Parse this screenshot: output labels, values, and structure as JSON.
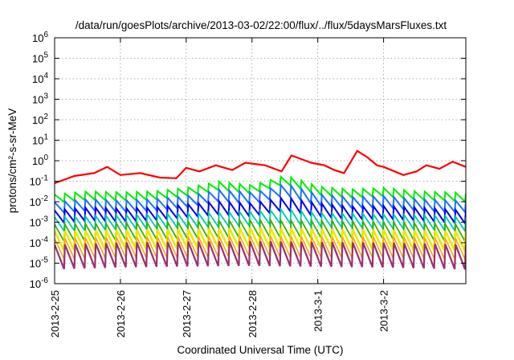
{
  "chart_data": {
    "type": "line",
    "title": "/data/run/goesPlots/archive/2013-03-02/22:00/flux/../flux/5daysMarsFluxes.txt",
    "xlabel": "Coordinated Universal Time (UTC)",
    "ylabel": "protons/cm²-s-sr-MeV",
    "yscale": "log",
    "ylim": [
      1e-06,
      1000000.0
    ],
    "ytick_values": [
      -6,
      -5,
      -4,
      -3,
      -2,
      -1,
      0,
      1,
      2,
      3,
      4,
      5,
      6
    ],
    "xlim_days": [
      0,
      6.25
    ],
    "xtick_labels": [
      "2013-2-25",
      "2013-2-26",
      "2013-2-27",
      "2013-2-28",
      "2013-3-1",
      "2013-3-2"
    ],
    "grid": true,
    "legend": "none",
    "sawtooth_teeth": 40,
    "series": [
      {
        "color": "#ff0000",
        "lw": 2.2,
        "x": [
          0,
          0.3,
          0.6,
          0.8,
          1.0,
          1.3,
          1.6,
          1.85,
          2.0,
          2.2,
          2.45,
          2.7,
          2.9,
          3.2,
          3.45,
          3.6,
          3.9,
          4.1,
          4.25,
          4.4,
          4.6,
          4.75,
          4.9,
          5.0,
          5.3,
          5.5,
          5.65,
          5.85,
          6.05,
          6.25
        ],
        "y": [
          0.08,
          0.18,
          0.25,
          0.5,
          0.2,
          0.25,
          0.15,
          0.14,
          0.45,
          0.3,
          0.6,
          0.35,
          0.8,
          0.6,
          0.3,
          1.8,
          0.8,
          0.6,
          0.35,
          0.25,
          3.0,
          1.5,
          0.6,
          0.5,
          0.2,
          0.3,
          0.6,
          0.4,
          0.9,
          0.5
        ]
      },
      {
        "color": "#00ee00",
        "lw": 2.0,
        "x": [
          0,
          0.5,
          1.0,
          1.5,
          2.0,
          2.5,
          3.0,
          3.2,
          3.5,
          3.8,
          4.0,
          4.5,
          5.0,
          5.5,
          6.0,
          6.25
        ],
        "y": [
          0.014,
          0.02,
          0.018,
          0.02,
          0.03,
          0.06,
          0.04,
          0.06,
          0.12,
          0.06,
          0.035,
          0.025,
          0.03,
          0.02,
          0.018,
          0.016
        ],
        "amp": 1.6
      },
      {
        "color": "#1e70ff",
        "lw": 2.0,
        "x": [
          0,
          0.5,
          1.0,
          1.5,
          2.0,
          2.5,
          3.0,
          3.2,
          3.5,
          3.8,
          4.0,
          4.5,
          5.0,
          5.5,
          6.0,
          6.25
        ],
        "y": [
          0.005,
          0.007,
          0.006,
          0.007,
          0.01,
          0.02,
          0.015,
          0.02,
          0.04,
          0.02,
          0.012,
          0.009,
          0.01,
          0.007,
          0.006,
          0.006
        ],
        "amp": 1.9
      },
      {
        "color": "#0000ee",
        "lw": 2.0,
        "x": [
          0,
          0.5,
          1.0,
          1.5,
          2.0,
          2.5,
          3.0,
          3.5,
          4.0,
          4.5,
          5.0,
          5.5,
          6.0,
          6.25
        ],
        "y": [
          0.0018,
          0.0025,
          0.0022,
          0.0025,
          0.0035,
          0.005,
          0.004,
          0.008,
          0.004,
          0.0028,
          0.003,
          0.0025,
          0.002,
          0.0018
        ],
        "amp": 2.1
      },
      {
        "color": "#00c8b0",
        "lw": 1.8,
        "x": [
          0,
          1.0,
          2.0,
          3.0,
          3.5,
          4.0,
          5.0,
          6.0,
          6.25
        ],
        "y": [
          0.0008,
          0.001,
          0.0012,
          0.0015,
          0.002,
          0.0013,
          0.0011,
          0.0009,
          0.0008
        ],
        "amp": 2.2
      },
      {
        "color": "#38b000",
        "lw": 1.8,
        "x": [
          0,
          1.0,
          2.0,
          3.0,
          4.0,
          5.0,
          6.25
        ],
        "y": [
          0.0003,
          0.00035,
          0.0004,
          0.0005,
          0.00045,
          0.0004,
          0.0003
        ],
        "amp": 2.6
      },
      {
        "color": "#e8e800",
        "lw": 2.6,
        "x": [
          0,
          1.0,
          2.0,
          3.0,
          4.0,
          5.0,
          6.25
        ],
        "y": [
          0.00012,
          0.00014,
          0.00015,
          0.00018,
          0.00016,
          0.00014,
          0.00012
        ],
        "amp": 3.0
      },
      {
        "color": "#ffa000",
        "lw": 1.5,
        "x": [
          0,
          1.0,
          2.0,
          3.0,
          4.0,
          5.0,
          6.25
        ],
        "y": [
          5e-05,
          6e-05,
          6e-05,
          7e-05,
          6e-05,
          6e-05,
          5e-05
        ],
        "amp": 3.2
      },
      {
        "color": "#9b3070",
        "lw": 2.2,
        "x": [
          0,
          1.0,
          2.0,
          3.0,
          4.0,
          5.0,
          6.25
        ],
        "y": [
          2e-05,
          2.5e-05,
          2.8e-05,
          3e-05,
          2.7e-05,
          2.5e-05,
          2e-05
        ],
        "amp": 4.0
      }
    ]
  }
}
